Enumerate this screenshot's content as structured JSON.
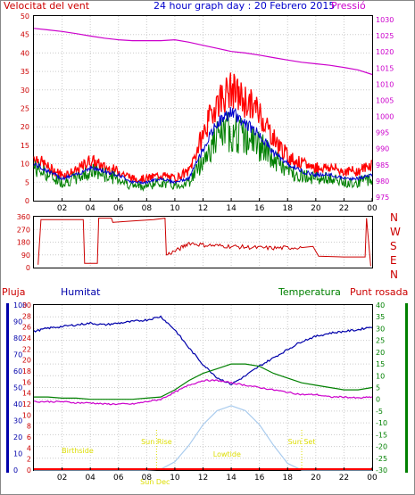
{
  "colors": {
    "wind": "#ff0000",
    "gust": "#ff0000",
    "wind_green": "#008000",
    "wind_avg": "#0000cc",
    "pressure": "#cc00cc",
    "direction": "#cc0000",
    "humidity": "#0000aa",
    "temperature": "#008000",
    "dewpoint": "#cc00cc",
    "rain": "#ff0000",
    "solar": "#aaccee",
    "sun_labels": "#dddd00",
    "axis_left_top": "#cc0000",
    "axis_right_top": "#cc00cc",
    "axis_left_bottom": "#0000aa",
    "axis_right_bottom": "#008000",
    "title": "#0000cc"
  },
  "chart_data": [
    {
      "type": "line",
      "title": "24 hour graph day : 20 Febrero 2015",
      "left_label": "Velocitat del vent",
      "right_label": "Pressió",
      "x_ticks": [
        "02",
        "04",
        "06",
        "08",
        "10",
        "12",
        "14",
        "16",
        "18",
        "20",
        "22",
        "00"
      ],
      "y_left_ticks": [
        "0",
        "5",
        "10",
        "15",
        "20",
        "25",
        "30",
        "35",
        "40",
        "45",
        "50"
      ],
      "y_left_lim": [
        0,
        50
      ],
      "y_right_ticks": [
        "975",
        "980",
        "985",
        "990",
        "995",
        "1000",
        "1005",
        "1010",
        "1015",
        "1020",
        "1025",
        "1030"
      ],
      "y_right_lim": [
        972.5,
        1032.5
      ],
      "x_hours": [
        0,
        1,
        2,
        3,
        4,
        5,
        6,
        7,
        8,
        9,
        10,
        11,
        12,
        13,
        14,
        15,
        16,
        17,
        18,
        19,
        20,
        21,
        22,
        23,
        24
      ],
      "series": [
        {
          "key": "gust",
          "values": [
            12,
            9,
            7,
            8,
            11,
            9,
            8,
            6,
            6,
            7,
            6,
            8,
            18,
            27,
            30,
            27,
            24,
            17,
            12,
            10,
            9,
            9,
            8,
            8,
            10
          ]
        },
        {
          "key": "wind",
          "values": [
            9,
            7,
            5,
            6,
            8,
            7,
            6,
            4,
            4,
            5,
            4,
            5,
            11,
            17,
            19,
            17,
            15,
            11,
            8,
            7,
            6,
            6,
            5,
            5,
            6
          ]
        },
        {
          "key": "wind_avg",
          "values": [
            10,
            8,
            6,
            7,
            9,
            8,
            7,
            5,
            5,
            6,
            5,
            6,
            14,
            21,
            24,
            21,
            18,
            13,
            10,
            8,
            7,
            7,
            6,
            6,
            7
          ]
        },
        {
          "key": "pressure",
          "values": [
            1028.5,
            1028,
            1027.5,
            1026.8,
            1026,
            1025.3,
            1024.8,
            1024.5,
            1024.5,
            1024.5,
            1024.8,
            1024,
            1023,
            1022,
            1021,
            1020.5,
            1019.8,
            1019,
            1018.2,
            1017.5,
            1017,
            1016.5,
            1015.8,
            1015,
            1013.5
          ]
        }
      ]
    },
    {
      "type": "line",
      "title": "",
      "right_labels": [
        "N",
        "W",
        "S",
        "E",
        "N"
      ],
      "y_ticks": [
        "0",
        "90",
        "180",
        "270",
        "360"
      ],
      "y_lim": [
        0,
        360
      ],
      "x_ticks": [
        "02",
        "04",
        "06",
        "08",
        "10",
        "12",
        "14",
        "16",
        "18",
        "20",
        "22",
        "00"
      ],
      "series": [
        {
          "key": "direction",
          "points": [
            [
              0.3,
              20
            ],
            [
              0.5,
              340
            ],
            [
              3.5,
              340
            ],
            [
              3.6,
              30
            ],
            [
              4.5,
              30
            ],
            [
              4.6,
              350
            ],
            [
              5.5,
              350
            ],
            [
              5.6,
              320
            ],
            [
              7,
              330
            ],
            [
              8.5,
              340
            ],
            [
              9.3,
              350
            ],
            [
              9.4,
              90
            ],
            [
              10.3,
              130
            ],
            [
              11,
              175
            ],
            [
              12,
              160
            ],
            [
              13,
              155
            ],
            [
              14,
              150
            ],
            [
              15,
              145
            ],
            [
              16,
              140
            ],
            [
              17,
              138
            ],
            [
              18,
              140
            ],
            [
              19,
              145
            ],
            [
              19.8,
              150
            ],
            [
              20.2,
              80
            ],
            [
              22,
              75
            ],
            [
              23.5,
              75
            ],
            [
              23.6,
              350
            ],
            [
              23.9,
              10
            ]
          ]
        }
      ]
    },
    {
      "type": "line",
      "legend": [
        "Pluja",
        "Humitat",
        "Temperatura",
        "Punt rosada"
      ],
      "y_left_outer_ticks": [
        "0",
        "10",
        "20",
        "30",
        "40",
        "50",
        "60",
        "70",
        "80",
        "90",
        "100"
      ],
      "y_left_outer_lim": [
        0,
        100
      ],
      "y_left_inner_ticks": [
        "0",
        "2",
        "4",
        "6",
        "8",
        "10",
        "12",
        "14",
        "16",
        "18",
        "20",
        "22",
        "24",
        "26",
        "28",
        "30"
      ],
      "y_left_inner_lim": [
        0,
        30
      ],
      "y_right_ticks": [
        "-30",
        "-25",
        "-20",
        "-15",
        "-10",
        "-5",
        "0",
        "5",
        "10",
        "15",
        "20",
        "25",
        "30",
        "35",
        "40"
      ],
      "y_right_lim": [
        -30,
        40
      ],
      "x_ticks": [
        "02",
        "04",
        "06",
        "08",
        "10",
        "12",
        "14",
        "16",
        "18",
        "20",
        "22",
        "00"
      ],
      "x_hours": [
        0,
        1,
        2,
        3,
        4,
        5,
        6,
        7,
        8,
        9,
        10,
        11,
        12,
        13,
        14,
        15,
        16,
        17,
        18,
        19,
        20,
        21,
        22,
        23,
        24
      ],
      "series": [
        {
          "key": "humidity",
          "values": [
            84,
            86,
            87,
            88,
            89,
            88,
            89,
            90,
            91,
            93,
            85,
            74,
            64,
            56,
            52,
            57,
            63,
            68,
            73,
            78,
            81,
            83,
            84,
            85,
            87
          ]
        },
        {
          "key": "temperature",
          "values": [
            1,
            1,
            0.5,
            0.5,
            0,
            0,
            0,
            0,
            0.5,
            1,
            4,
            8,
            11,
            13,
            15,
            15,
            14,
            11,
            9,
            7,
            6,
            5,
            4,
            4,
            5
          ]
        },
        {
          "key": "dewpoint",
          "values": [
            -1,
            -1,
            -1,
            -1.5,
            -1.5,
            -2,
            -2,
            -2,
            -1,
            0,
            3,
            6,
            8,
            8,
            7,
            6,
            5,
            4,
            3,
            2,
            2,
            1,
            1,
            0.5,
            1
          ]
        },
        {
          "key": "solar",
          "values": [
            0,
            0,
            0,
            0,
            0,
            0,
            0,
            0,
            0,
            1,
            10,
            30,
            55,
            72,
            78,
            72,
            55,
            30,
            8,
            0,
            0,
            0,
            0,
            0,
            0
          ]
        },
        {
          "key": "rain",
          "values": [
            0,
            0,
            0,
            0,
            0,
            0,
            0,
            0,
            0,
            0,
            0,
            0,
            0,
            0,
            0,
            0,
            0,
            0,
            0,
            0,
            0,
            0,
            0,
            0,
            0
          ]
        }
      ],
      "annotations": [
        {
          "text": "Sun Rise",
          "hour": 8.7
        },
        {
          "text": "Sun Set",
          "hour": 19
        },
        {
          "text": "Sun Dec",
          "hour": 8.6
        },
        {
          "text": "Birthside",
          "hour": 3.1
        },
        {
          "text": "Lowtide",
          "hour": 13.7
        }
      ]
    }
  ]
}
